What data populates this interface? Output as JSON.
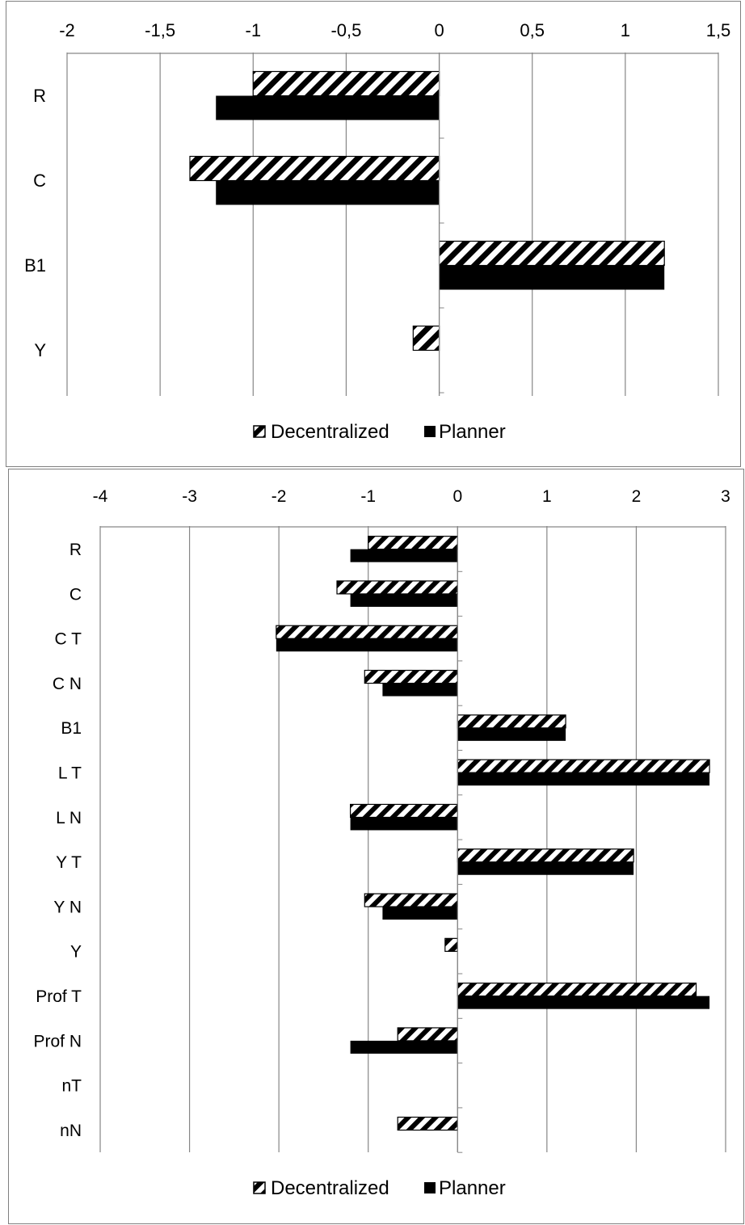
{
  "chart_data": [
    {
      "type": "bar",
      "orientation": "horizontal",
      "categories": [
        "R",
        "C",
        "B1",
        "Y"
      ],
      "series": [
        {
          "name": "Decentralized",
          "values": [
            -1.0,
            -1.34,
            1.21,
            -0.14
          ]
        },
        {
          "name": "Planner",
          "values": [
            -1.2,
            -1.2,
            1.21,
            0
          ]
        }
      ],
      "xlim": [
        -2,
        1.5
      ],
      "xticks": [
        -2,
        -1.5,
        -1,
        -0.5,
        0,
        0.5,
        1,
        1.5
      ],
      "xtick_labels": [
        "-2",
        "-1,5",
        "-1",
        "-0,5",
        "0",
        "0,5",
        "1",
        "1,5"
      ],
      "xaxis_position": "top",
      "grid": "vertical",
      "legend_position": "bottom",
      "title": "",
      "xlabel": "",
      "ylabel": ""
    },
    {
      "type": "bar",
      "orientation": "horizontal",
      "categories": [
        "R",
        "C",
        "C T",
        "C N",
        "B1",
        "L T",
        "L N",
        "Y T",
        "Y N",
        "Y",
        "Prof T",
        "Prof N",
        "nT",
        "nN"
      ],
      "series": [
        {
          "name": "Decentralized",
          "values": [
            -1.0,
            -1.35,
            -2.03,
            -1.04,
            1.21,
            2.82,
            -1.2,
            1.97,
            -1.04,
            -0.14,
            2.67,
            -0.67,
            0,
            -0.67
          ]
        },
        {
          "name": "Planner",
          "values": [
            -1.2,
            -1.2,
            -2.03,
            -0.84,
            1.21,
            2.82,
            -1.2,
            1.97,
            -0.84,
            0,
            2.82,
            -1.2,
            0,
            0
          ]
        }
      ],
      "xlim": [
        -4,
        3
      ],
      "xticks": [
        -4,
        -3,
        -2,
        -1,
        0,
        1,
        2,
        3
      ],
      "xtick_labels": [
        "-4",
        "-3",
        "-2",
        "-1",
        "0",
        "1",
        "2",
        "3"
      ],
      "xaxis_position": "top",
      "grid": "vertical",
      "legend_position": "bottom",
      "title": "",
      "xlabel": "",
      "ylabel": ""
    }
  ],
  "colors": {
    "planner": "#000000",
    "decentralized_pattern": "black-white-diagonal-stripes",
    "grid": "#868686",
    "border": "#7f7f7f"
  }
}
